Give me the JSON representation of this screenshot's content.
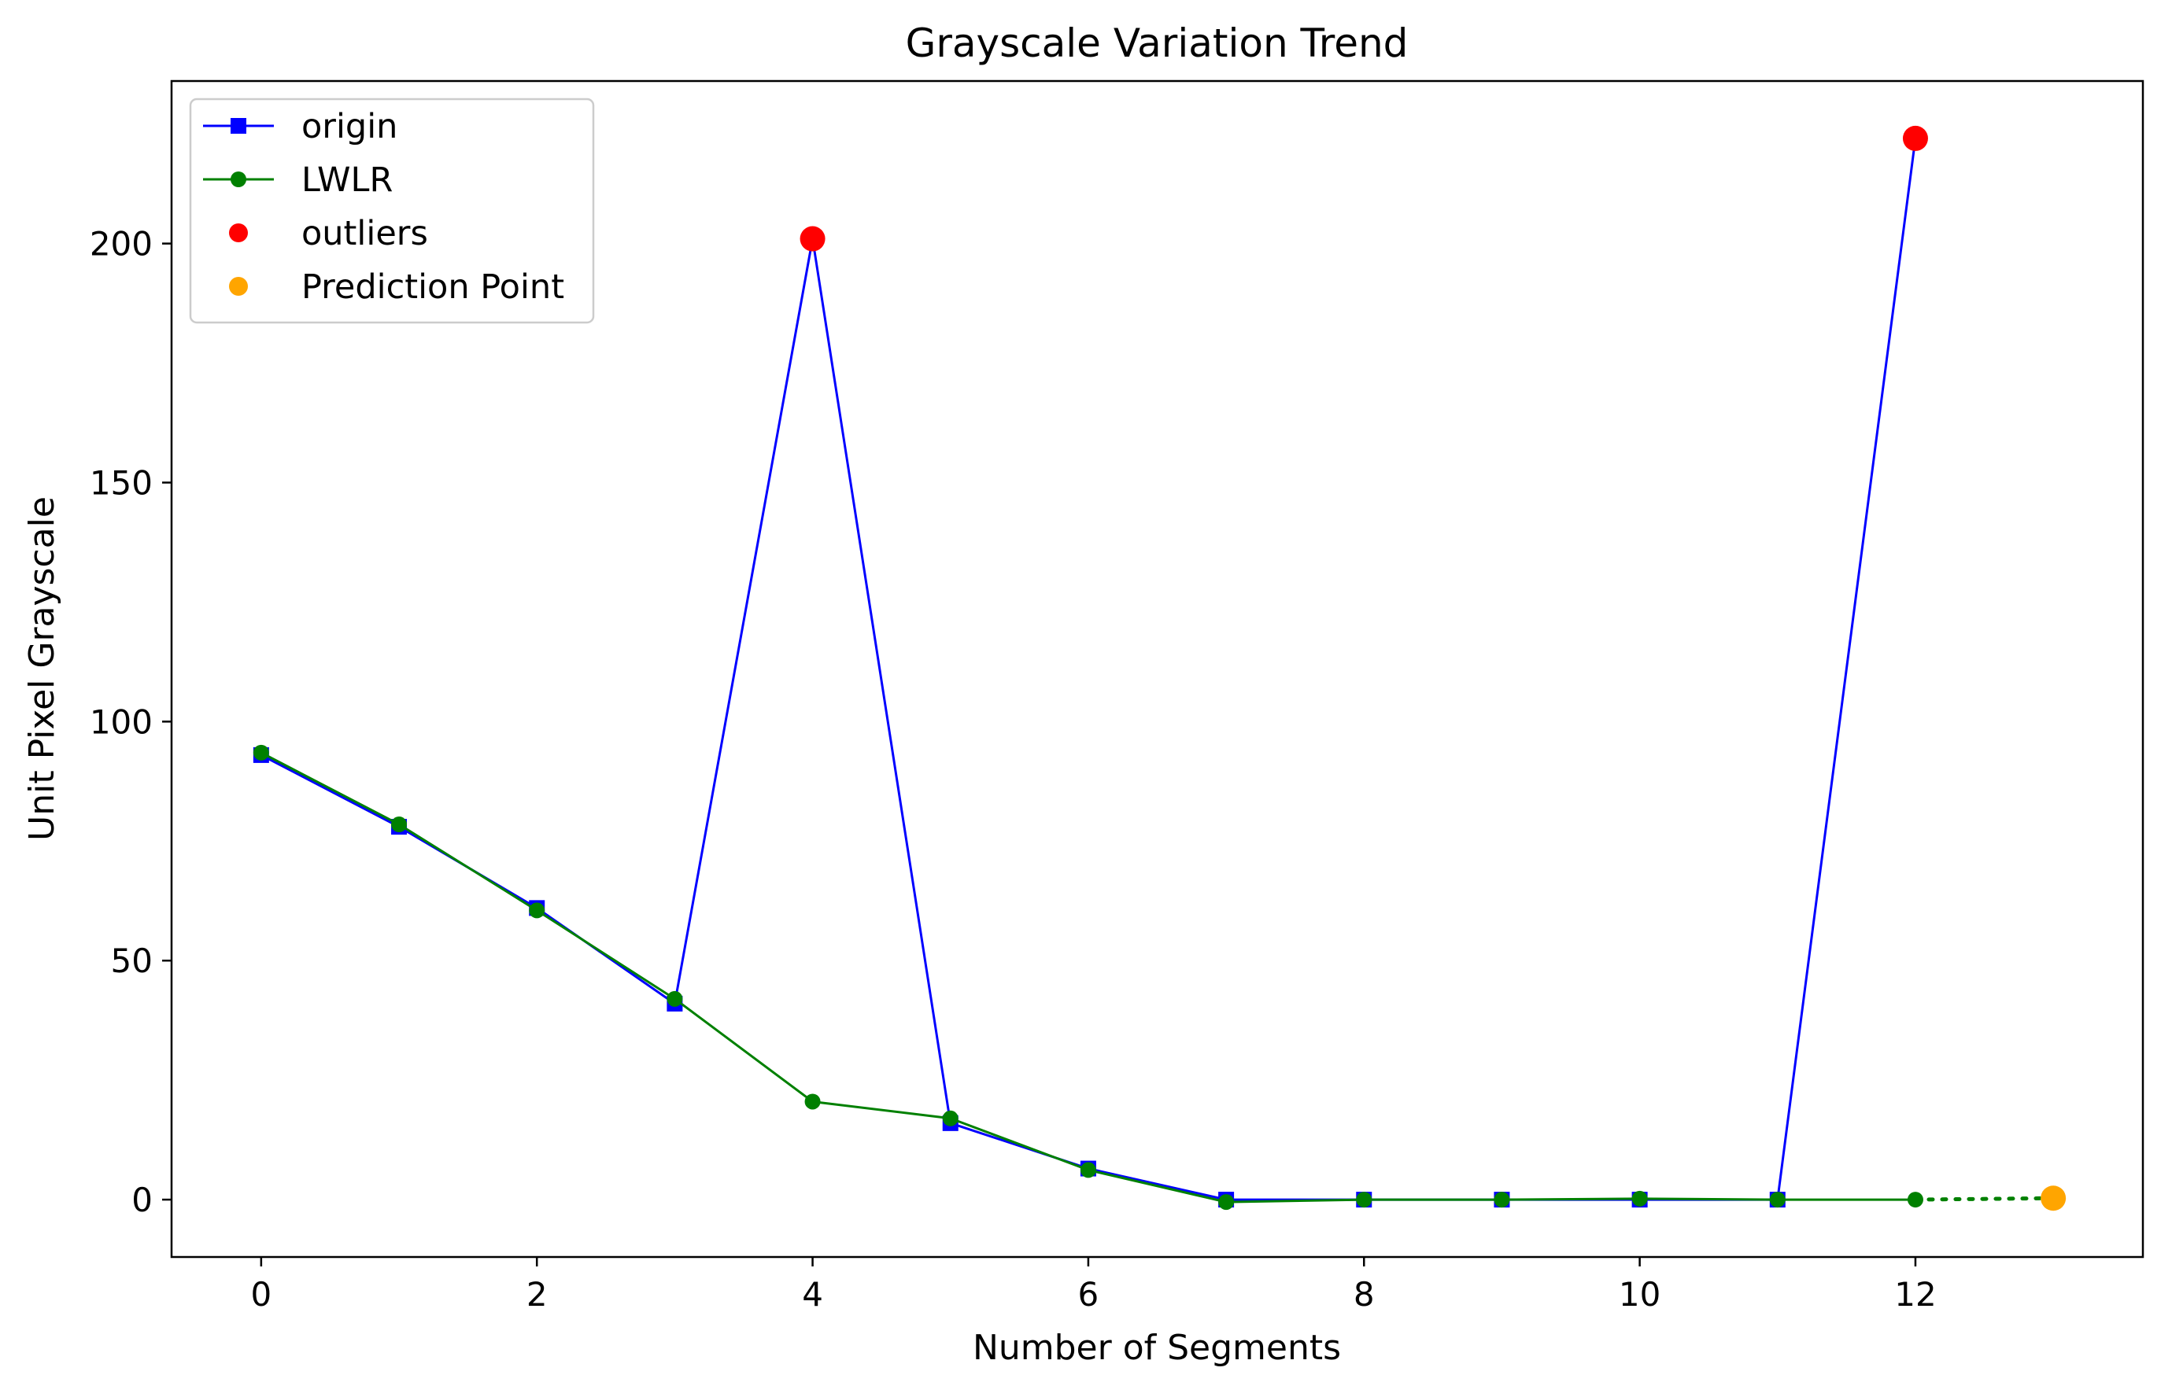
{
  "chart_data": {
    "type": "line",
    "title": "Grayscale Variation Trend",
    "xlabel": "Number of Segments",
    "ylabel": "Unit Pixel Grayscale",
    "xlim": [
      -0.65,
      13.65
    ],
    "ylim": [
      -12,
      234
    ],
    "xticks": [
      0,
      2,
      4,
      6,
      8,
      10,
      12
    ],
    "yticks": [
      0,
      50,
      100,
      150,
      200
    ],
    "grid": false,
    "legend_position": "top-left",
    "series": [
      {
        "name": "origin",
        "color": "#0000ff",
        "marker": "square",
        "line": "solid",
        "x": [
          0,
          1,
          2,
          3,
          4,
          5,
          6,
          7,
          8,
          9,
          10,
          11,
          12
        ],
        "y": [
          93,
          78,
          61,
          41,
          201,
          16,
          6.5,
          0,
          0,
          0,
          0,
          0,
          222
        ]
      },
      {
        "name": "LWLR",
        "color": "#008000",
        "marker": "circle",
        "line": "solid",
        "x": [
          0,
          1,
          2,
          3,
          4,
          5,
          6,
          7,
          8,
          9,
          10,
          11,
          12
        ],
        "y": [
          93.5,
          78.5,
          60.5,
          42,
          20.5,
          17,
          6.2,
          -0.5,
          0,
          0,
          0.2,
          0,
          0
        ]
      },
      {
        "name": "outliers",
        "color": "#ff0000",
        "marker": "circle",
        "line": "none",
        "x": [
          4,
          12
        ],
        "y": [
          201,
          222
        ]
      },
      {
        "name": "Prediction Point",
        "color": "#ffa500",
        "marker": "circle",
        "line": "none",
        "x": [
          13
        ],
        "y": [
          0.3
        ]
      }
    ],
    "prediction_link": {
      "color": "#008000",
      "line": "dotted",
      "x": [
        12,
        13
      ],
      "y": [
        0,
        0.3
      ]
    }
  }
}
